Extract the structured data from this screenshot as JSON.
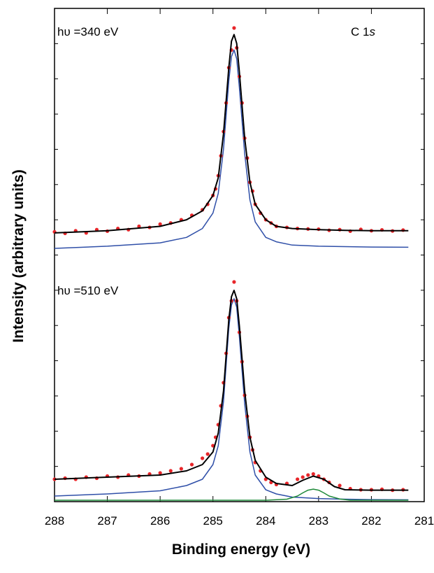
{
  "chart_data": {
    "type": "line",
    "title": "",
    "xlabel": "Binding energy (eV)",
    "ylabel": "Intensity (arbitrary units)",
    "xlim": [
      288,
      281
    ],
    "x_reversed": true,
    "x_ticks": [
      288,
      287,
      286,
      285,
      284,
      283,
      282,
      281
    ],
    "x_tick_labels": [
      "288",
      "287",
      "286",
      "285",
      "284",
      "283",
      "282",
      "281"
    ],
    "y_tick_labels_shown": false,
    "grid": false,
    "legend": "none",
    "colors": {
      "data": "#e8262a",
      "fit": "#000000",
      "component_main": "#2f4fa8",
      "component_minor": "#1f8a3a"
    },
    "annotations": {
      "core_level_prefix": "C 1",
      "core_level_suffix": "s",
      "spectrum_top": "hυ =340 eV",
      "spectrum_bottom": "hυ =510 eV"
    },
    "panels": [
      {
        "photon_energy_label": "hυ =340 eV",
        "series": [
          {
            "role": "fit",
            "color": "#000000",
            "x": [
              288,
              287,
              286,
              285.5,
              285.2,
              285.0,
              284.9,
              284.8,
              284.7,
              284.65,
              284.6,
              284.55,
              284.5,
              284.4,
              284.3,
              284.2,
              284.0,
              283.8,
              283.5,
              283,
              282.5,
              282,
              281.3
            ],
            "y": [
              0.07,
              0.08,
              0.1,
              0.13,
              0.17,
              0.24,
              0.32,
              0.52,
              0.82,
              0.94,
              0.97,
              0.93,
              0.8,
              0.5,
              0.3,
              0.2,
              0.13,
              0.1,
              0.09,
              0.085,
              0.082,
              0.08,
              0.08
            ]
          },
          {
            "role": "component",
            "color": "#2f4fa8",
            "x": [
              288,
              287,
              286,
              285.5,
              285.2,
              285.0,
              284.9,
              284.8,
              284.7,
              284.65,
              284.6,
              284.55,
              284.5,
              284.4,
              284.3,
              284.2,
              284.0,
              283.8,
              283.5,
              283,
              282.5,
              282,
              281.3
            ],
            "y": [
              0.0,
              0.01,
              0.025,
              0.05,
              0.09,
              0.16,
              0.25,
              0.45,
              0.76,
              0.87,
              0.9,
              0.86,
              0.73,
              0.43,
              0.22,
              0.12,
              0.05,
              0.03,
              0.015,
              0.01,
              0.008,
              0.006,
              0.005
            ]
          },
          {
            "role": "data",
            "color": "#e8262a",
            "x": [
              288.0,
              287.8,
              287.6,
              287.4,
              287.2,
              287.0,
              286.8,
              286.6,
              286.4,
              286.2,
              286.0,
              285.8,
              285.6,
              285.4,
              285.2,
              285.1,
              285.0,
              284.95,
              284.9,
              284.85,
              284.8,
              284.75,
              284.7,
              284.65,
              284.6,
              284.55,
              284.5,
              284.45,
              284.4,
              284.35,
              284.3,
              284.25,
              284.2,
              284.1,
              284.0,
              283.9,
              283.8,
              283.6,
              283.4,
              283.2,
              283.0,
              282.8,
              282.6,
              282.4,
              282.2,
              282.0,
              281.8,
              281.6,
              281.4
            ],
            "y": [
              0.075,
              0.068,
              0.08,
              0.07,
              0.085,
              0.078,
              0.09,
              0.085,
              0.1,
              0.095,
              0.11,
              0.115,
              0.13,
              0.15,
              0.175,
              0.2,
              0.24,
              0.27,
              0.33,
              0.42,
              0.53,
              0.66,
              0.82,
              0.9,
              1.0,
              0.91,
              0.78,
              0.66,
              0.5,
              0.41,
              0.3,
              0.26,
              0.2,
              0.16,
              0.13,
              0.115,
              0.1,
              0.095,
              0.09,
              0.088,
              0.087,
              0.082,
              0.085,
              0.078,
              0.086,
              0.08,
              0.084,
              0.079,
              0.083
            ]
          }
        ]
      },
      {
        "photon_energy_label": "hυ =510 eV",
        "series": [
          {
            "role": "fit",
            "color": "#000000",
            "x": [
              288,
              287,
              286,
              285.5,
              285.2,
              285.0,
              284.9,
              284.8,
              284.7,
              284.65,
              284.6,
              284.55,
              284.5,
              284.4,
              284.3,
              284.2,
              284.0,
              283.8,
              283.5,
              283.3,
              283.1,
              282.9,
              282.7,
              282.5,
              282.0,
              281.3
            ],
            "y": [
              0.1,
              0.11,
              0.12,
              0.14,
              0.17,
              0.23,
              0.32,
              0.52,
              0.86,
              0.97,
              1.0,
              0.96,
              0.83,
              0.52,
              0.3,
              0.19,
              0.11,
              0.08,
              0.07,
              0.095,
              0.115,
              0.1,
              0.065,
              0.05,
              0.048,
              0.048
            ]
          },
          {
            "role": "component",
            "color": "#2f4fa8",
            "x": [
              288,
              287,
              286,
              285.5,
              285.2,
              285.0,
              284.9,
              284.8,
              284.7,
              284.65,
              284.6,
              284.55,
              284.5,
              284.4,
              284.3,
              284.2,
              284.0,
              283.8,
              283.5,
              283,
              282.5,
              282,
              281.3
            ],
            "y": [
              0.02,
              0.03,
              0.045,
              0.07,
              0.1,
              0.17,
              0.26,
              0.47,
              0.82,
              0.93,
              0.96,
              0.92,
              0.78,
              0.46,
              0.23,
              0.12,
              0.05,
              0.03,
              0.015,
              0.008,
              0.005,
              0.003,
              0.002
            ]
          },
          {
            "role": "component",
            "color": "#1f8a3a",
            "x": [
              288,
              284,
              283.6,
              283.4,
              283.3,
              283.2,
              283.1,
              283.0,
              282.9,
              282.8,
              282.6,
              282.4,
              282,
              281.3
            ],
            "y": [
              0.0,
              0.0,
              0.005,
              0.02,
              0.035,
              0.048,
              0.053,
              0.048,
              0.035,
              0.02,
              0.006,
              0.0,
              0.0,
              0.0
            ]
          },
          {
            "role": "data",
            "color": "#e8262a",
            "x": [
              288.0,
              287.8,
              287.6,
              287.4,
              287.2,
              287.0,
              286.8,
              286.6,
              286.4,
              286.2,
              286.0,
              285.8,
              285.6,
              285.4,
              285.2,
              285.1,
              285.0,
              284.95,
              284.9,
              284.85,
              284.8,
              284.75,
              284.7,
              284.65,
              284.6,
              284.55,
              284.5,
              284.45,
              284.4,
              284.35,
              284.3,
              284.25,
              284.2,
              284.1,
              284.0,
              283.9,
              283.8,
              283.6,
              283.4,
              283.3,
              283.2,
              283.1,
              283.0,
              282.9,
              282.8,
              282.6,
              282.4,
              282.2,
              282.0,
              281.8,
              281.6,
              281.4
            ],
            "y": [
              0.1,
              0.105,
              0.1,
              0.11,
              0.105,
              0.115,
              0.11,
              0.12,
              0.115,
              0.125,
              0.13,
              0.14,
              0.15,
              0.17,
              0.2,
              0.22,
              0.26,
              0.3,
              0.36,
              0.45,
              0.56,
              0.7,
              0.87,
              0.95,
              1.04,
              0.95,
              0.8,
              0.66,
              0.5,
              0.4,
              0.3,
              0.24,
              0.18,
              0.14,
              0.1,
              0.085,
              0.075,
              0.08,
              0.1,
              0.11,
              0.12,
              0.125,
              0.115,
              0.1,
              0.085,
              0.07,
              0.055,
              0.05,
              0.05,
              0.052,
              0.048,
              0.05
            ]
          }
        ]
      }
    ]
  }
}
